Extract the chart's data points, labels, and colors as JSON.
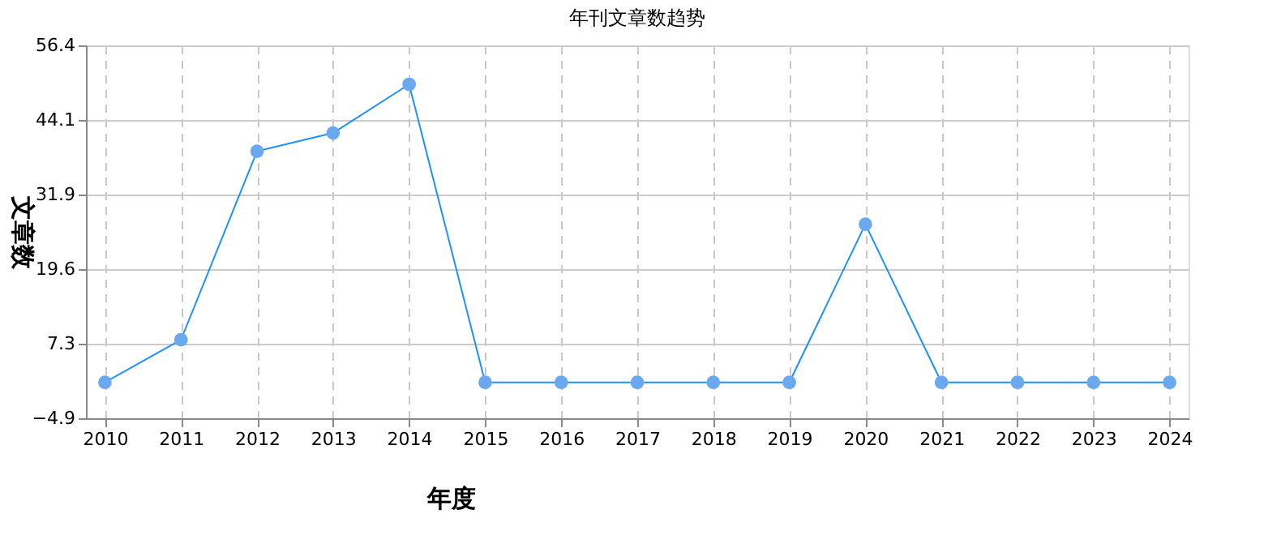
{
  "chart_data": {
    "type": "line",
    "title": "年刊文章数趋势",
    "xlabel": "年度",
    "ylabel": "文章数",
    "categories": [
      "2010",
      "2011",
      "2012",
      "2013",
      "2014",
      "2015",
      "2016",
      "2017",
      "2018",
      "2019",
      "2020",
      "2021",
      "2022",
      "2023",
      "2024"
    ],
    "series": [
      {
        "color": "#1e90ff",
        "values": [
          1,
          8,
          39,
          42,
          50,
          1,
          1,
          1,
          1,
          1,
          27,
          1,
          1,
          1,
          1
        ]
      }
    ],
    "ylim": [
      -4.9,
      56.4
    ],
    "yticks": [
      -4.9,
      7.3,
      19.6,
      31.9,
      44.1,
      56.4
    ],
    "grid": true,
    "marker": "circle",
    "line_style": "solid"
  }
}
